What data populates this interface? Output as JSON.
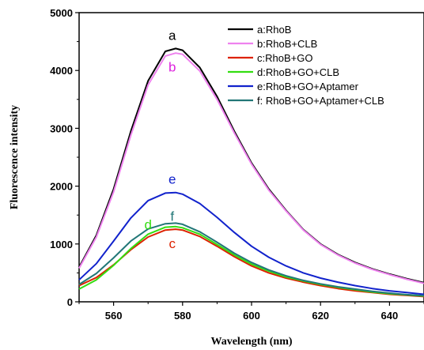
{
  "chart_data": {
    "type": "line",
    "xlabel": "Wavelength (nm)",
    "ylabel": "Fluorescence intensity",
    "xlim": [
      550,
      650
    ],
    "ylim": [
      0,
      5000
    ],
    "xticks": [
      560,
      580,
      600,
      620,
      640
    ],
    "yticks": [
      0,
      1000,
      2000,
      3000,
      4000,
      5000
    ],
    "grid": false,
    "legend_position": "top-right",
    "series": [
      {
        "name": "a:RhoB",
        "label": "a",
        "color": "#000000",
        "x": [
          550,
          555,
          560,
          565,
          570,
          575,
          578,
          580,
          585,
          590,
          595,
          600,
          605,
          610,
          615,
          620,
          625,
          630,
          635,
          640,
          645,
          650
        ],
        "y": [
          600,
          1150,
          1950,
          2950,
          3820,
          4330,
          4380,
          4350,
          4050,
          3550,
          2950,
          2400,
          1950,
          1580,
          1250,
          1000,
          820,
          680,
          570,
          480,
          400,
          330
        ]
      },
      {
        "name": "b:RhoB+CLB",
        "label": "b",
        "color": "#ee82ee",
        "x": [
          550,
          555,
          560,
          565,
          570,
          575,
          578,
          580,
          585,
          590,
          595,
          600,
          605,
          610,
          615,
          620,
          625,
          630,
          635,
          640,
          645,
          650
        ],
        "y": [
          580,
          1120,
          1900,
          2880,
          3750,
          4250,
          4300,
          4280,
          3990,
          3500,
          2920,
          2380,
          1930,
          1570,
          1240,
          990,
          810,
          670,
          560,
          470,
          390,
          320
        ]
      },
      {
        "name": "c:RhoB+GO",
        "label": "c",
        "color": "#dd2200",
        "x": [
          550,
          555,
          560,
          565,
          570,
          575,
          578,
          580,
          585,
          590,
          595,
          600,
          605,
          610,
          615,
          620,
          625,
          630,
          635,
          640,
          645,
          650
        ],
        "y": [
          280,
          420,
          640,
          900,
          1120,
          1240,
          1255,
          1240,
          1130,
          960,
          780,
          620,
          500,
          410,
          340,
          280,
          230,
          190,
          160,
          130,
          110,
          90
        ]
      },
      {
        "name": "d:RhoB+GO+CLB",
        "label": "d",
        "color": "#33dd11",
        "x": [
          550,
          555,
          560,
          565,
          570,
          575,
          578,
          580,
          585,
          590,
          595,
          600,
          605,
          610,
          615,
          620,
          625,
          630,
          635,
          640,
          645,
          650
        ],
        "y": [
          220,
          380,
          630,
          920,
          1170,
          1290,
          1300,
          1280,
          1170,
          990,
          810,
          650,
          530,
          430,
          360,
          300,
          250,
          210,
          170,
          140,
          120,
          100
        ]
      },
      {
        "name": "e:RhoB+GO+Aptamer",
        "label": "e",
        "color": "#1122cc",
        "x": [
          550,
          555,
          560,
          565,
          570,
          575,
          578,
          580,
          585,
          590,
          595,
          600,
          605,
          610,
          615,
          620,
          625,
          630,
          635,
          640,
          645,
          650
        ],
        "y": [
          380,
          660,
          1050,
          1450,
          1750,
          1880,
          1890,
          1860,
          1700,
          1460,
          1200,
          960,
          770,
          620,
          500,
          410,
          340,
          280,
          230,
          190,
          160,
          130
        ]
      },
      {
        "name": "f: RhoB+GO+Aptamer+CLB",
        "label": "f",
        "color": "#227777",
        "x": [
          550,
          555,
          560,
          565,
          570,
          575,
          578,
          580,
          585,
          590,
          595,
          600,
          605,
          610,
          615,
          620,
          625,
          630,
          635,
          640,
          645,
          650
        ],
        "y": [
          300,
          490,
          760,
          1050,
          1260,
          1350,
          1360,
          1340,
          1210,
          1030,
          840,
          680,
          550,
          450,
          370,
          310,
          260,
          220,
          180,
          150,
          125,
          105
        ]
      }
    ],
    "curve_labels": [
      {
        "label": "a",
        "x": 577,
        "y": 4530,
        "color": "#000000"
      },
      {
        "label": "b",
        "x": 577,
        "y": 3980,
        "color": "#dd22dd"
      },
      {
        "label": "c",
        "x": 577,
        "y": 930,
        "color": "#dd2200"
      },
      {
        "label": "d",
        "x": 570,
        "y": 1260,
        "color": "#33dd11"
      },
      {
        "label": "e",
        "x": 577,
        "y": 2040,
        "color": "#1122cc"
      },
      {
        "label": "f",
        "x": 577,
        "y": 1400,
        "color": "#227777"
      }
    ]
  }
}
